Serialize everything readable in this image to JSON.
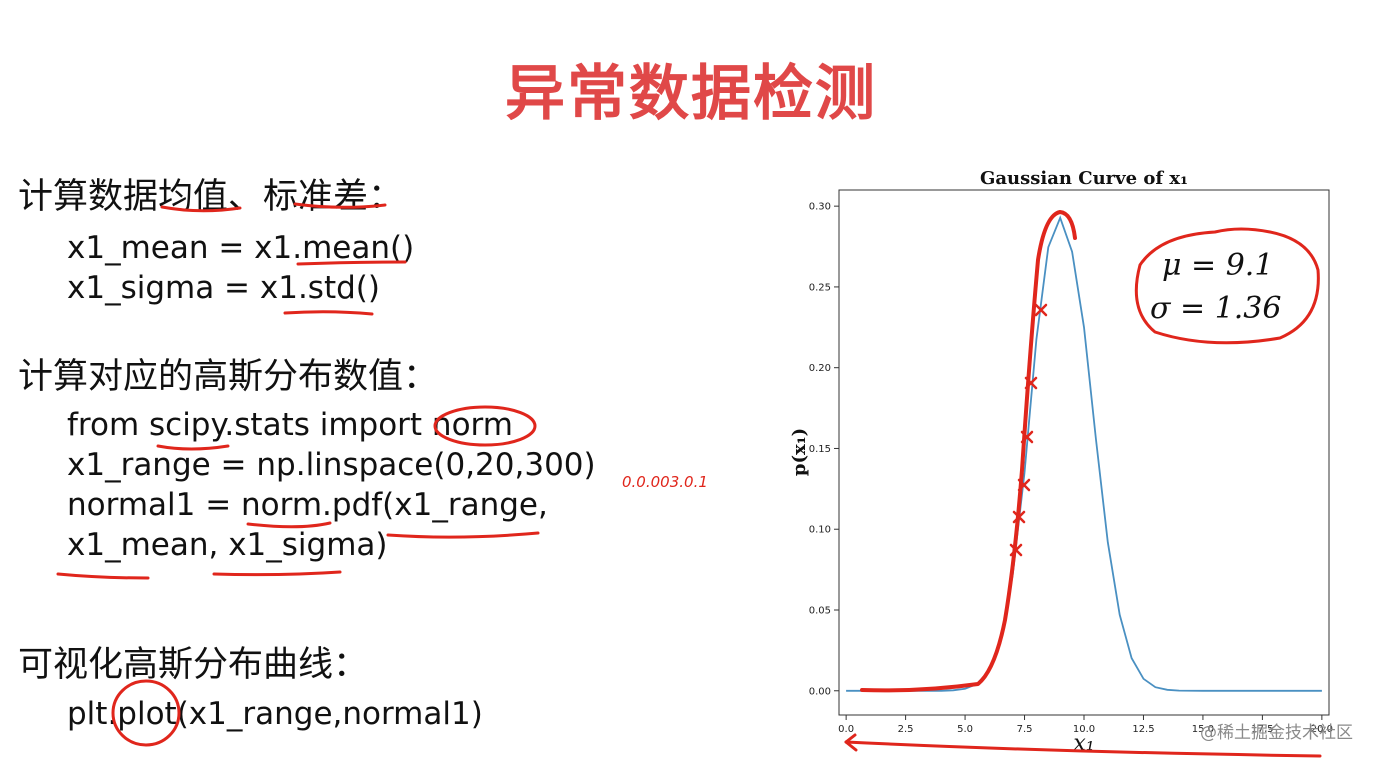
{
  "slide": {
    "title": "异常数据检测",
    "step1_heading": "计算数据均值、标准差：",
    "step1_code": [
      "x1_mean = x1.mean()",
      "x1_sigma = x1.std()"
    ],
    "step2_heading": "计算对应的高斯分布数值：",
    "step2_code": [
      "from scipy.stats import norm",
      "x1_range = np.linspace(0,20,300)",
      "normal1 = norm.pdf(x1_range,",
      "x1_mean, x1_sigma)"
    ],
    "step3_heading": "可视化高斯分布曲线：",
    "step3_code": [
      "plt.plot(x1_range,normal1)"
    ],
    "handwritten_note": "0.0.003.0.1",
    "watermark": "@稀土掘金技术社区"
  },
  "chart_data": {
    "type": "line",
    "title": "Gaussian Curve of x₁",
    "xlabel": "x₁",
    "ylabel": "p(x₁)",
    "xlim": [
      -0.3,
      20.3
    ],
    "ylim": [
      -0.015,
      0.31
    ],
    "xticks": [
      "0.0",
      "2.5",
      "5.0",
      "7.5",
      "10.0",
      "12.5",
      "15.0",
      "17.5",
      "20.0"
    ],
    "yticks": [
      "0.00",
      "0.05",
      "0.10",
      "0.15",
      "0.20",
      "0.25",
      "0.30"
    ],
    "series": [
      {
        "color": "#4a90c2",
        "x": [
          0,
          4.0,
          4.5,
          5.0,
          5.5,
          6.0,
          6.5,
          7.0,
          7.5,
          8.0,
          8.5,
          9.0,
          9.5,
          10.0,
          10.5,
          11.0,
          11.5,
          12.0,
          12.5,
          13.0,
          13.5,
          14.0,
          15.0,
          20.0
        ],
        "y": [
          0.0,
          0.0,
          0.0003,
          0.0012,
          0.0042,
          0.0125,
          0.0322,
          0.0713,
          0.135,
          0.2175,
          0.2746,
          0.2928,
          0.2718,
          0.225,
          0.156,
          0.092,
          0.047,
          0.0202,
          0.0074,
          0.0022,
          0.0006,
          0.0001,
          0.0,
          0.0
        ]
      }
    ],
    "annotation_lines": [
      "μ = 9.1",
      "σ = 1.36"
    ],
    "annotation_color": "#e0261c",
    "grid": false
  }
}
